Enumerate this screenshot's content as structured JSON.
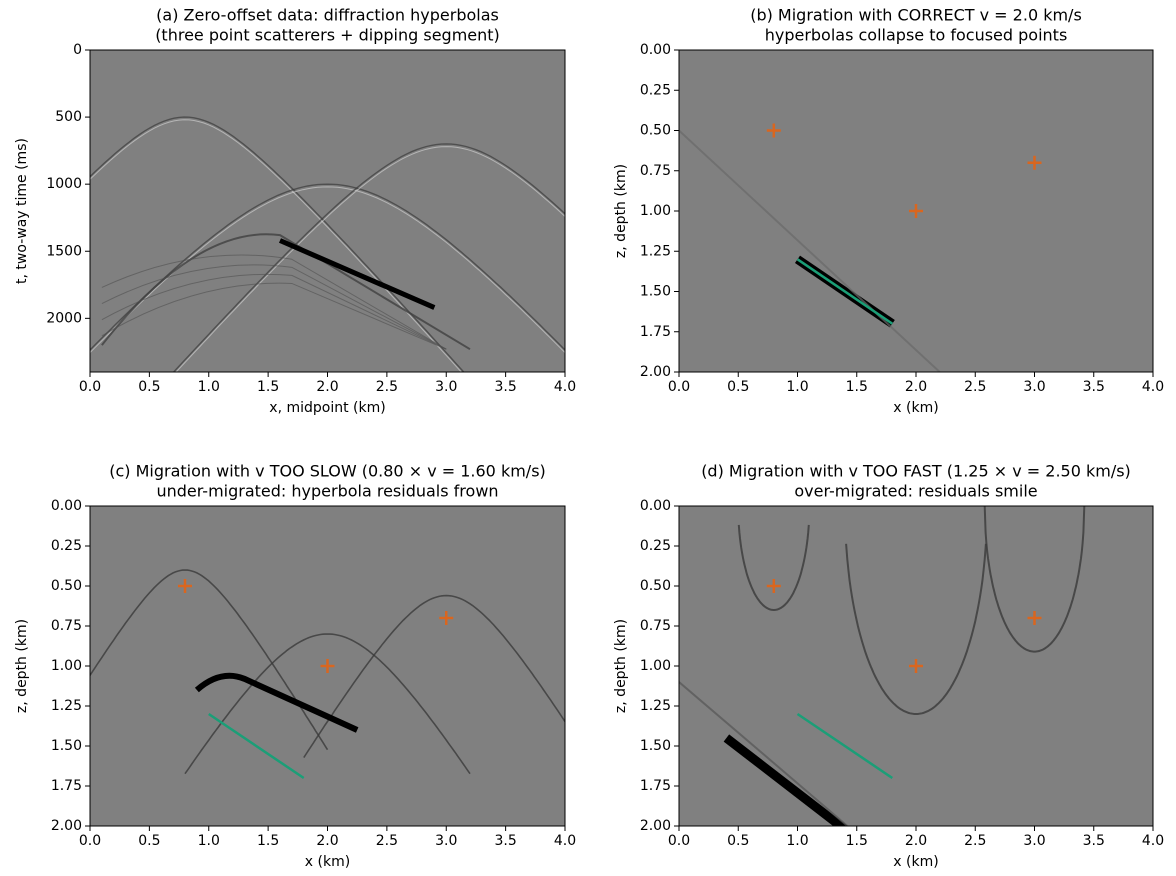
{
  "chart_data": [
    {
      "type": "image",
      "title": "(a) Zero-offset data: diffraction hyperbolas",
      "subtitle": "(three point scatterers + dipping segment)",
      "xlabel": "x, midpoint (km)",
      "ylabel": "t, two-way time (ms)",
      "xlim": [
        0,
        4
      ],
      "ylim": [
        2400,
        0
      ],
      "xticks": [
        {
          "value": 0,
          "label": "0.0"
        },
        0.5,
        {
          "value": 1,
          "label": "1.0"
        },
        1.5,
        {
          "value": 2,
          "label": "2.0"
        },
        2.5,
        {
          "value": 3,
          "label": "3.0"
        },
        3.5,
        {
          "value": 4,
          "label": "4.0"
        }
      ],
      "yticks": [
        0,
        500,
        1000,
        1500,
        2000
      ]
    },
    {
      "type": "image",
      "title": "(b) Migration with CORRECT v = 2.0 km/s",
      "subtitle": "hyperbolas collapse to focused points",
      "xlabel": "x (km)",
      "ylabel": "z, depth (km)",
      "xlim": [
        0,
        4
      ],
      "ylim": [
        2,
        0
      ],
      "xticks": [
        {
          "value": 0,
          "label": "0.0"
        },
        0.5,
        {
          "value": 1,
          "label": "1.0"
        },
        1.5,
        {
          "value": 2,
          "label": "2.0"
        },
        2.5,
        {
          "value": 3,
          "label": "3.0"
        },
        3.5,
        {
          "value": 4,
          "label": "4.0"
        }
      ],
      "yticks": [
        {
          "value": 0,
          "label": "0.00"
        },
        0.25,
        {
          "value": 0.5,
          "label": "0.50"
        },
        0.75,
        {
          "value": 1,
          "label": "1.00"
        },
        1.25,
        {
          "value": 1.5,
          "label": "1.50"
        },
        1.75,
        {
          "value": 2,
          "label": "2.00"
        }
      ],
      "points": {
        "x": [
          0.8,
          2.0,
          3.0
        ],
        "y": [
          0.5,
          1.0,
          0.7
        ],
        "color": "#d9661f"
      },
      "segment": {
        "x": [
          1.0,
          1.8
        ],
        "y": [
          1.3,
          1.7
        ],
        "color": "#1b9e77"
      }
    },
    {
      "type": "image",
      "title": "(c) Migration with v TOO SLOW (0.80 × v = 1.60 km/s)",
      "subtitle": "under-migrated: hyperbola residuals frown",
      "xlabel": "x (km)",
      "ylabel": "z, depth (km)",
      "xlim": [
        0,
        4
      ],
      "ylim": [
        2,
        0
      ],
      "xticks": [
        {
          "value": 0,
          "label": "0.0"
        },
        0.5,
        {
          "value": 1,
          "label": "1.0"
        },
        1.5,
        {
          "value": 2,
          "label": "2.0"
        },
        2.5,
        {
          "value": 3,
          "label": "3.0"
        },
        3.5,
        {
          "value": 4,
          "label": "4.0"
        }
      ],
      "yticks": [
        {
          "value": 0,
          "label": "0.00"
        },
        0.25,
        {
          "value": 0.5,
          "label": "0.50"
        },
        0.75,
        {
          "value": 1,
          "label": "1.00"
        },
        1.25,
        {
          "value": 1.5,
          "label": "1.50"
        },
        1.75,
        {
          "value": 2,
          "label": "2.00"
        }
      ],
      "points": {
        "x": [
          0.8,
          2.0,
          3.0
        ],
        "y": [
          0.5,
          1.0,
          0.7
        ],
        "color": "#d9661f"
      },
      "segment": {
        "x": [
          1.0,
          1.8
        ],
        "y": [
          1.3,
          1.7
        ],
        "color": "#1b9e77"
      }
    },
    {
      "type": "image",
      "title": "(d) Migration with v TOO FAST (1.25 × v = 2.50 km/s)",
      "subtitle": "over-migrated: residuals smile",
      "xlabel": "x (km)",
      "ylabel": "z, depth (km)",
      "xlim": [
        0,
        4
      ],
      "ylim": [
        2,
        0
      ],
      "xticks": [
        {
          "value": 0,
          "label": "0.0"
        },
        0.5,
        {
          "value": 1,
          "label": "1.0"
        },
        1.5,
        {
          "value": 2,
          "label": "2.0"
        },
        2.5,
        {
          "value": 3,
          "label": "3.0"
        },
        3.5,
        {
          "value": 4,
          "label": "4.0"
        }
      ],
      "yticks": [
        {
          "value": 0,
          "label": "0.00"
        },
        0.25,
        {
          "value": 0.5,
          "label": "0.50"
        },
        0.75,
        {
          "value": 1,
          "label": "1.00"
        },
        1.25,
        {
          "value": 1.5,
          "label": "1.50"
        },
        1.75,
        {
          "value": 2,
          "label": "2.00"
        }
      ],
      "points": {
        "x": [
          0.8,
          2.0,
          3.0
        ],
        "y": [
          0.5,
          1.0,
          0.7
        ],
        "color": "#d9661f"
      },
      "segment": {
        "x": [
          1.0,
          1.8
        ],
        "y": [
          1.3,
          1.7
        ],
        "color": "#1b9e77"
      }
    }
  ]
}
